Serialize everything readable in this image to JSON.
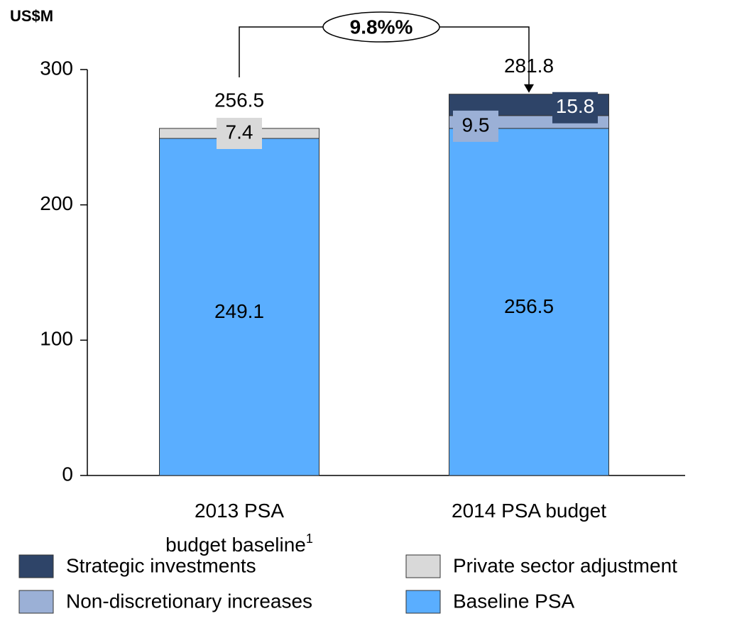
{
  "chart_data": {
    "type": "stacked_bar",
    "y_axis_label": "US$M",
    "categories": [
      [
        "2013 PSA",
        "budget baseline"
      ],
      [
        "2014 PSA budget"
      ]
    ],
    "footnote_marks": [
      "1",
      null
    ],
    "series": [
      {
        "name": "Baseline PSA",
        "color": "#5aaeff",
        "values": [
          249.1,
          256.5
        ]
      },
      {
        "name": "Private sector adjustment",
        "color": "#d9d9d9",
        "values": [
          7.4,
          null
        ]
      },
      {
        "name": "Non-discretionary increases",
        "color": "#9bb0d6",
        "values": [
          null,
          9.5
        ]
      },
      {
        "name": "Strategic investments",
        "color": "#2e4468",
        "values": [
          null,
          15.8
        ]
      }
    ],
    "totals": [
      256.5,
      281.8
    ],
    "annotation": "9.8%%",
    "ylim": [
      0,
      300
    ],
    "yticks": [
      0,
      100,
      200,
      300
    ],
    "grid": false
  }
}
